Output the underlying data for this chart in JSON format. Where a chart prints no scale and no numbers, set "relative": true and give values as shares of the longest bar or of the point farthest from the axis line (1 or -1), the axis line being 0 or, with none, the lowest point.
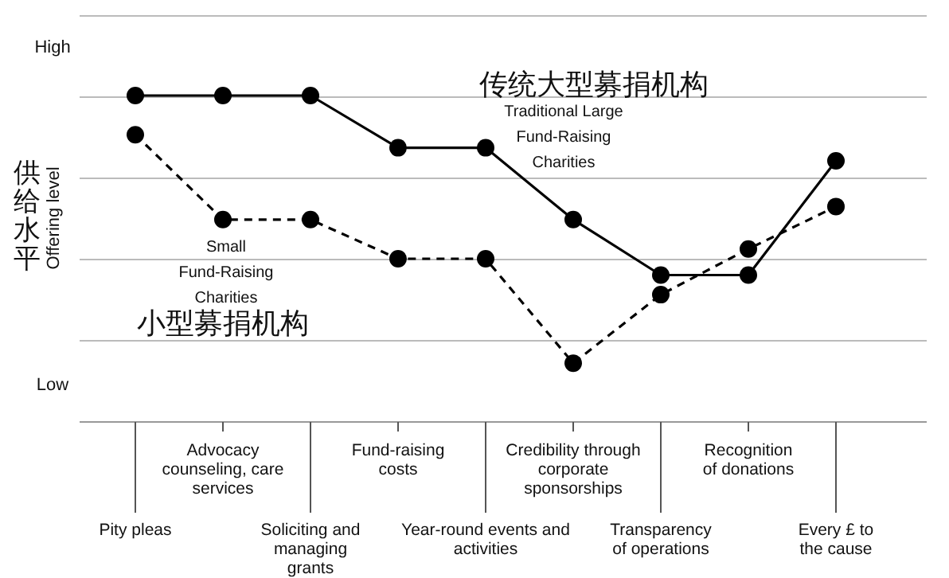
{
  "chart_data": {
    "type": "line",
    "relative": true,
    "ylabel": "Offering level",
    "categories": [
      "Pity pleas",
      "Advocacy counseling, care services",
      "Soliciting and managing grants",
      "Fund-raising costs",
      "Year-round events and activities",
      "Credibility through corporate sponsorships",
      "Transparency of operations",
      "Recognition of donations",
      "Every £ to the cause"
    ],
    "series": [
      {
        "name": "传统大型募捐机构",
        "color": "#000000",
        "line_style": "solid",
        "values": [
          1,
          1,
          1,
          0.84,
          0.84,
          0.62,
          0.45,
          0.45,
          0.8
        ]
      },
      {
        "name": "小型募捐机构",
        "color": "#000000",
        "line_style": "dashed",
        "values": [
          0.88,
          0.62,
          0.62,
          0.5,
          0.5,
          0.18,
          0.39,
          0.53,
          0.66
        ]
      }
    ],
    "marker": "circle",
    "grid": "y",
    "annotations": [
      "High",
      "Low",
      "供给水平",
      "Traditional Large Fund-Raising Charities",
      "Small Fund-Raising Charities"
    ]
  }
}
